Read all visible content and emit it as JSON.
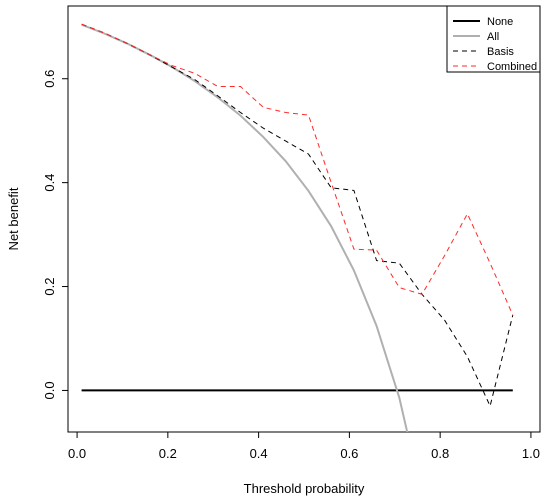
{
  "chart_data": {
    "type": "line",
    "title": "",
    "xlabel": "Threshold probability",
    "ylabel": "Net benefit",
    "xlim": [
      -0.02,
      1.02
    ],
    "ylim": [
      -0.08,
      0.74
    ],
    "xticks": [
      0.0,
      0.2,
      0.4,
      0.6,
      0.8,
      1.0
    ],
    "xtick_labels": [
      "0.0",
      "0.2",
      "0.4",
      "0.6",
      "0.8",
      "1.0"
    ],
    "yticks": [
      0.0,
      0.2,
      0.4,
      0.6
    ],
    "ytick_labels": [
      "0.0",
      "0.2",
      "0.4",
      "0.6"
    ],
    "legend_position": "top-right",
    "grid": false,
    "series": [
      {
        "name": "None",
        "color": "#000000",
        "style": "solid",
        "width": 2,
        "x": [
          0.01,
          0.96
        ],
        "y": [
          0.0,
          0.0
        ]
      },
      {
        "name": "All",
        "color": "#b0b0b0",
        "style": "solid",
        "width": 2,
        "x": [
          0.01,
          0.06,
          0.11,
          0.16,
          0.21,
          0.26,
          0.31,
          0.36,
          0.41,
          0.46,
          0.51,
          0.56,
          0.61,
          0.66,
          0.71,
          0.73
        ],
        "y": [
          0.704,
          0.687,
          0.668,
          0.646,
          0.622,
          0.595,
          0.564,
          0.529,
          0.488,
          0.441,
          0.384,
          0.316,
          0.231,
          0.124,
          -0.014,
          -0.09
        ]
      },
      {
        "name": "Basis",
        "color": "#000000",
        "style": "dashed",
        "width": 1,
        "x": [
          0.01,
          0.06,
          0.11,
          0.16,
          0.21,
          0.26,
          0.31,
          0.36,
          0.41,
          0.46,
          0.51,
          0.56,
          0.61,
          0.66,
          0.71,
          0.76,
          0.81,
          0.86,
          0.91,
          0.96
        ],
        "y": [
          0.705,
          0.688,
          0.668,
          0.646,
          0.622,
          0.598,
          0.567,
          0.535,
          0.505,
          0.48,
          0.455,
          0.39,
          0.385,
          0.25,
          0.245,
          0.185,
          0.135,
          0.065,
          -0.03,
          0.145
        ]
      },
      {
        "name": "Combined",
        "color": "#ff2a2a",
        "style": "dashed",
        "width": 1,
        "x": [
          0.01,
          0.06,
          0.11,
          0.16,
          0.21,
          0.26,
          0.31,
          0.36,
          0.41,
          0.46,
          0.51,
          0.56,
          0.61,
          0.66,
          0.71,
          0.76,
          0.81,
          0.86,
          0.91,
          0.96
        ],
        "y": [
          0.705,
          0.688,
          0.668,
          0.646,
          0.625,
          0.61,
          0.585,
          0.585,
          0.545,
          0.535,
          0.53,
          0.4,
          0.272,
          0.27,
          0.198,
          0.185,
          0.26,
          0.34,
          0.245,
          0.145
        ]
      }
    ]
  }
}
